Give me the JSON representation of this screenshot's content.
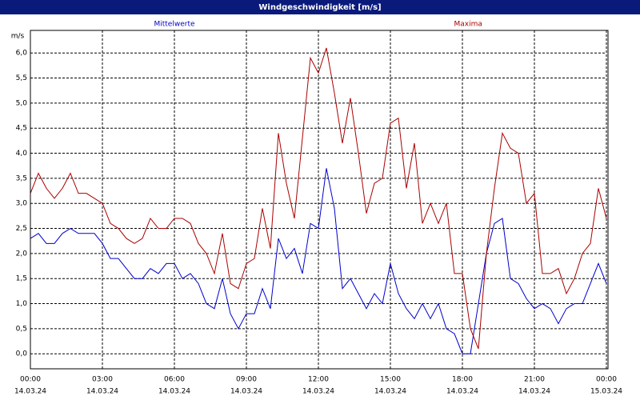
{
  "chart_data": {
    "type": "line",
    "title": "Windgeschwindigkeit [m/s]",
    "y_label": "m/s",
    "x": [
      0,
      20,
      40,
      60,
      80,
      100,
      120,
      140,
      160,
      180,
      200,
      220,
      240,
      260,
      280,
      300,
      320,
      340,
      360,
      380,
      400,
      420,
      440,
      460,
      480,
      500,
      520,
      540,
      560,
      580,
      600,
      620,
      640,
      660,
      680,
      700,
      720,
      740,
      760,
      780,
      800,
      820,
      840,
      860,
      880,
      900,
      920,
      940,
      960,
      980,
      1000,
      1020,
      1040,
      1060,
      1080,
      1100,
      1120,
      1140,
      1160,
      1180,
      1200,
      1220,
      1240,
      1260,
      1280,
      1300,
      1320,
      1340,
      1360,
      1380,
      1400,
      1420,
      1440
    ],
    "series": [
      {
        "name": "Mittelwerte",
        "color": "#0000cc",
        "values": [
          2.3,
          2.4,
          2.2,
          2.2,
          2.4,
          2.5,
          2.4,
          2.4,
          2.4,
          2.2,
          1.9,
          1.9,
          1.7,
          1.5,
          1.5,
          1.7,
          1.6,
          1.8,
          1.8,
          1.5,
          1.6,
          1.4,
          1.0,
          0.9,
          1.5,
          0.8,
          0.5,
          0.8,
          0.8,
          1.3,
          0.9,
          2.3,
          1.9,
          2.1,
          1.6,
          2.6,
          2.5,
          3.7,
          2.9,
          1.3,
          1.5,
          1.2,
          0.9,
          1.2,
          1.0,
          1.8,
          1.2,
          0.9,
          0.7,
          1.0,
          0.7,
          1.0,
          0.5,
          0.4,
          0.0,
          0.0,
          1.0,
          2.0,
          2.6,
          2.7,
          1.5,
          1.4,
          1.1,
          0.9,
          1.0,
          0.9,
          0.6,
          0.9,
          1.0,
          1.0,
          1.4,
          1.8,
          1.4
        ]
      },
      {
        "name": "Maxima",
        "color": "#aa0000",
        "values": [
          3.2,
          3.6,
          3.3,
          3.1,
          3.3,
          3.6,
          3.2,
          3.2,
          3.1,
          3.0,
          2.6,
          2.5,
          2.3,
          2.2,
          2.3,
          2.7,
          2.5,
          2.5,
          2.7,
          2.7,
          2.6,
          2.2,
          2.0,
          1.6,
          2.4,
          1.4,
          1.3,
          1.8,
          1.9,
          2.9,
          2.1,
          4.4,
          3.4,
          2.7,
          4.3,
          5.9,
          5.6,
          6.1,
          5.2,
          4.2,
          5.1,
          4.0,
          2.8,
          3.4,
          3.5,
          4.6,
          4.7,
          3.3,
          4.2,
          2.6,
          3.0,
          2.6,
          3.0,
          1.6,
          1.6,
          0.5,
          0.1,
          2.0,
          3.3,
          4.4,
          4.1,
          4.0,
          3.0,
          3.2,
          1.6,
          1.6,
          1.7,
          1.2,
          1.5,
          2.0,
          2.2,
          3.3,
          2.7
        ]
      }
    ],
    "xlim": [
      0,
      1440
    ],
    "xticks": [
      {
        "value": 0,
        "label": "00:00"
      },
      {
        "value": 180,
        "label": "03:00"
      },
      {
        "value": 360,
        "label": "06:00"
      },
      {
        "value": 540,
        "label": "09:00"
      },
      {
        "value": 720,
        "label": "12:00"
      },
      {
        "value": 900,
        "label": "15:00"
      },
      {
        "value": 1080,
        "label": "18:00"
      },
      {
        "value": 1260,
        "label": "21:00"
      },
      {
        "value": 1440,
        "label": "00:00"
      }
    ],
    "xtick_dates": [
      "14.03.24",
      "14.03.24",
      "14.03.24",
      "14.03.24",
      "14.03.24",
      "14.03.24",
      "14.03.24",
      "14.03.24",
      "15.03.24"
    ],
    "ylim": [
      -0.3,
      6.45
    ],
    "yticks": [
      {
        "value": 0,
        "label": "0,0"
      },
      {
        "value": 0.5,
        "label": "0,5"
      },
      {
        "value": 1,
        "label": "1,0"
      },
      {
        "value": 1.5,
        "label": "1,5"
      },
      {
        "value": 2,
        "label": "2,0"
      },
      {
        "value": 2.5,
        "label": "2,5"
      },
      {
        "value": 3,
        "label": "3,0"
      },
      {
        "value": 3.5,
        "label": "3,5"
      },
      {
        "value": 4,
        "label": "4,0"
      },
      {
        "value": 4.5,
        "label": "4,5"
      },
      {
        "value": 5,
        "label": "5,0"
      },
      {
        "value": 5.5,
        "label": "5,5"
      },
      {
        "value": 6,
        "label": "6,0"
      }
    ],
    "grid": true
  }
}
